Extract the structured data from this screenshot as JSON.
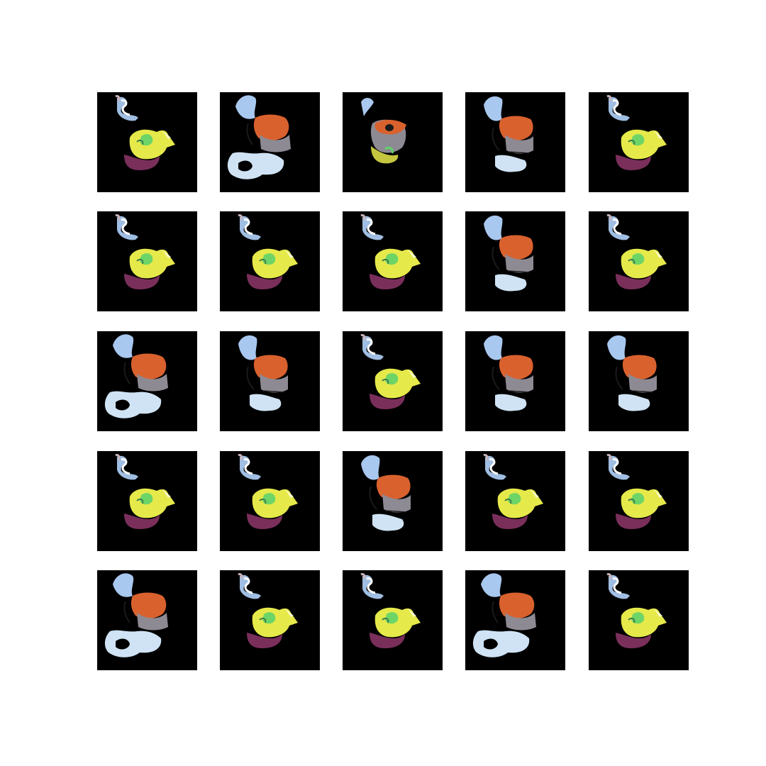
{
  "figure": {
    "description_type": "generated-sample-grid",
    "rows": 5,
    "cols": 5,
    "tiles": [
      {
        "variant": "A"
      },
      {
        "variant": "B"
      },
      {
        "variant": "C"
      },
      {
        "variant": "D"
      },
      {
        "variant": "A"
      },
      {
        "variant": "A"
      },
      {
        "variant": "A"
      },
      {
        "variant": "A"
      },
      {
        "variant": "D"
      },
      {
        "variant": "A"
      },
      {
        "variant": "B"
      },
      {
        "variant": "D"
      },
      {
        "variant": "A"
      },
      {
        "variant": "D"
      },
      {
        "variant": "D"
      },
      {
        "variant": "A"
      },
      {
        "variant": "A"
      },
      {
        "variant": "D"
      },
      {
        "variant": "A"
      },
      {
        "variant": "A"
      },
      {
        "variant": "B"
      },
      {
        "variant": "A"
      },
      {
        "variant": "A"
      },
      {
        "variant": "B"
      },
      {
        "variant": "A"
      }
    ]
  },
  "palette": {
    "background": "#000000",
    "page": "#ffffff",
    "yellow": "#e6e94a",
    "green": "#5fd36a",
    "purple": "#7a2f5b",
    "light_blue": "#a9c8ef",
    "orange": "#d9612e",
    "gray": "#8d8a93",
    "pale_blue": "#cfe3f4"
  }
}
